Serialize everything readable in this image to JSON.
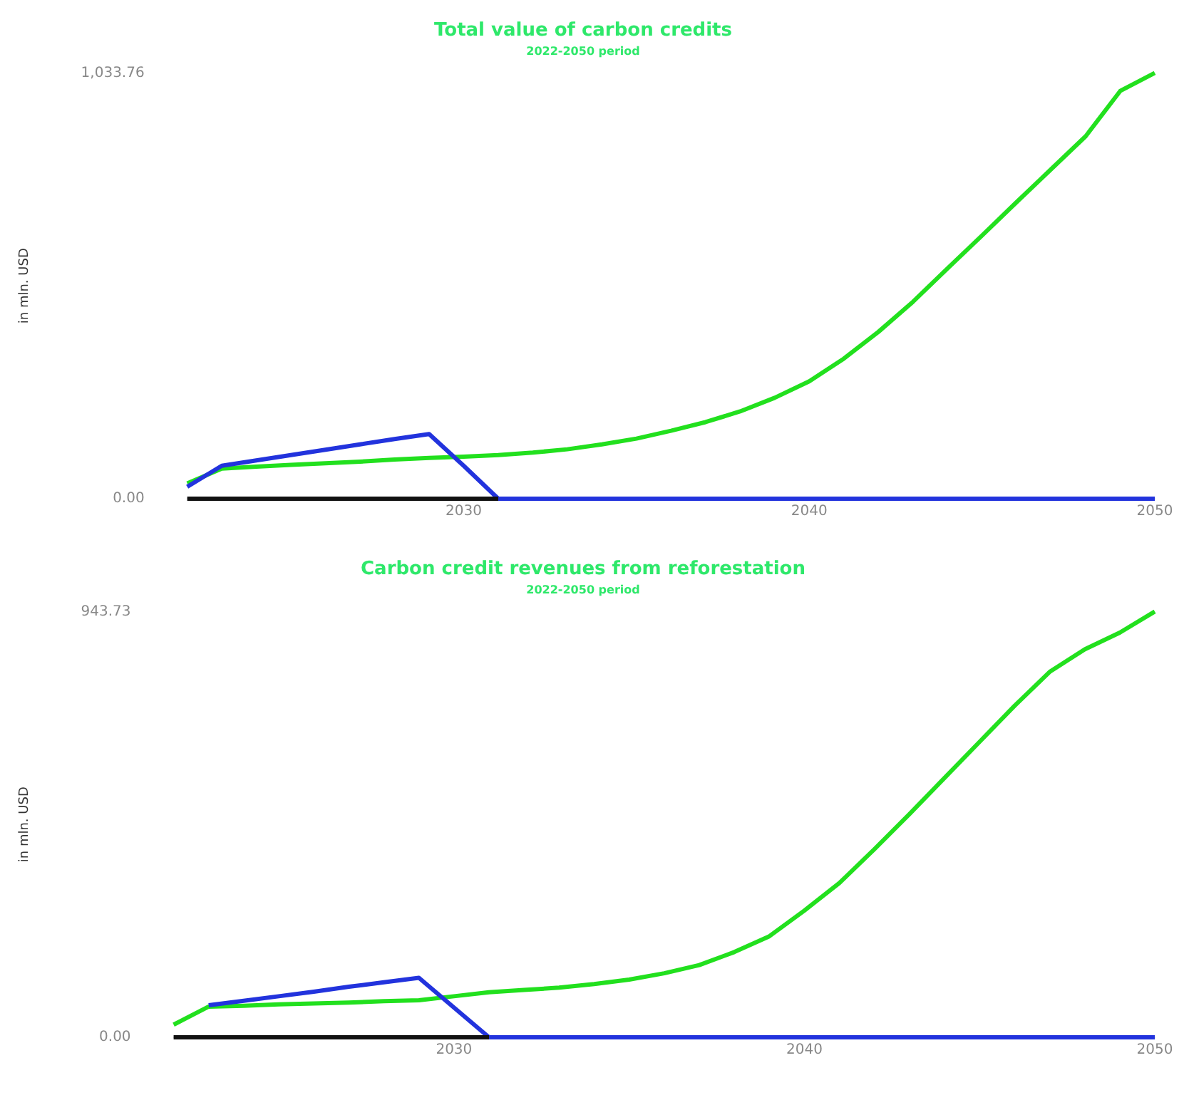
{
  "chart_data": [
    {
      "type": "line",
      "title": "Total value of carbon credits",
      "subtitle": "2022-2050 period",
      "ylabel": "in mln. USD",
      "x": [
        2022,
        2023,
        2024,
        2025,
        2026,
        2027,
        2028,
        2029,
        2030,
        2031,
        2032,
        2033,
        2034,
        2035,
        2036,
        2037,
        2038,
        2039,
        2040,
        2041,
        2042,
        2043,
        2044,
        2045,
        2046,
        2047,
        2048,
        2049,
        2050
      ],
      "series": [
        {
          "color": "#22e01e",
          "values": [
            37,
            73,
            78,
            82,
            86,
            90,
            95,
            99,
            102,
            106,
            112,
            120,
            132,
            146,
            165,
            186,
            212,
            245,
            285,
            340,
            405,
            478,
            559,
            639,
            720,
            800,
            880,
            990,
            1033.76
          ]
        },
        {
          "color": "#2233dd",
          "values": [
            29,
            80,
            93,
            106,
            119,
            132,
            145,
            157,
            80,
            0,
            0,
            0,
            0,
            0,
            0,
            0,
            0,
            0,
            0,
            0,
            0,
            0,
            0,
            0,
            0,
            0,
            0,
            0,
            0
          ]
        },
        {
          "color": "#111111",
          "values": [
            0,
            0,
            0,
            0,
            0,
            0,
            0,
            0,
            0,
            0,
            null,
            null,
            null,
            null,
            null,
            null,
            null,
            null,
            null,
            null,
            null,
            null,
            null,
            null,
            null,
            null,
            null,
            null,
            null
          ]
        }
      ],
      "xlim": [
        2022,
        2050
      ],
      "xticks": [
        2030,
        2040,
        2050
      ],
      "ylim": [
        0,
        1033.76
      ],
      "yticks": [
        {
          "value": 0,
          "label": "0.00"
        },
        {
          "value": 1033.76,
          "label": "1,033.76"
        }
      ],
      "grid": false,
      "legend": false,
      "marker": "none",
      "line_style": "solid"
    },
    {
      "type": "line",
      "title": "Carbon credit revenues from reforestation",
      "subtitle": "2022-2050 period",
      "ylabel": "in mln. USD",
      "x": [
        2022,
        2023,
        2024,
        2025,
        2026,
        2027,
        2028,
        2029,
        2030,
        2031,
        2032,
        2033,
        2034,
        2035,
        2036,
        2037,
        2038,
        2039,
        2040,
        2041,
        2042,
        2043,
        2044,
        2045,
        2046,
        2047,
        2048,
        2049,
        2050
      ],
      "series": [
        {
          "color": "#22e01e",
          "values": [
            28,
            68,
            70,
            73,
            75,
            77,
            80,
            82,
            91,
            100,
            105,
            110,
            118,
            128,
            142,
            160,
            189,
            224,
            281,
            342,
            417,
            495,
            575,
            655,
            735,
            810,
            860,
            897,
            943.73
          ]
        },
        {
          "color": "#2233dd",
          "values": [
            null,
            71,
            81,
            91,
            101,
            112,
            122,
            132,
            66,
            0,
            0,
            0,
            0,
            0,
            0,
            0,
            0,
            0,
            0,
            0,
            0,
            0,
            0,
            0,
            0,
            0,
            0,
            0,
            0
          ]
        },
        {
          "color": "#111111",
          "values": [
            0,
            0,
            0,
            0,
            0,
            0,
            0,
            0,
            0,
            0,
            null,
            null,
            null,
            null,
            null,
            null,
            null,
            null,
            null,
            null,
            null,
            null,
            null,
            null,
            null,
            null,
            null,
            null,
            null
          ]
        }
      ],
      "xlim": [
        2022,
        2050
      ],
      "xticks": [
        2030,
        2040,
        2050
      ],
      "ylim": [
        0,
        943.73
      ],
      "yticks": [
        {
          "value": 0,
          "label": "0.00"
        },
        {
          "value": 943.73,
          "label": "943.73"
        }
      ],
      "grid": false,
      "legend": false,
      "marker": "none",
      "line_style": "solid"
    }
  ]
}
